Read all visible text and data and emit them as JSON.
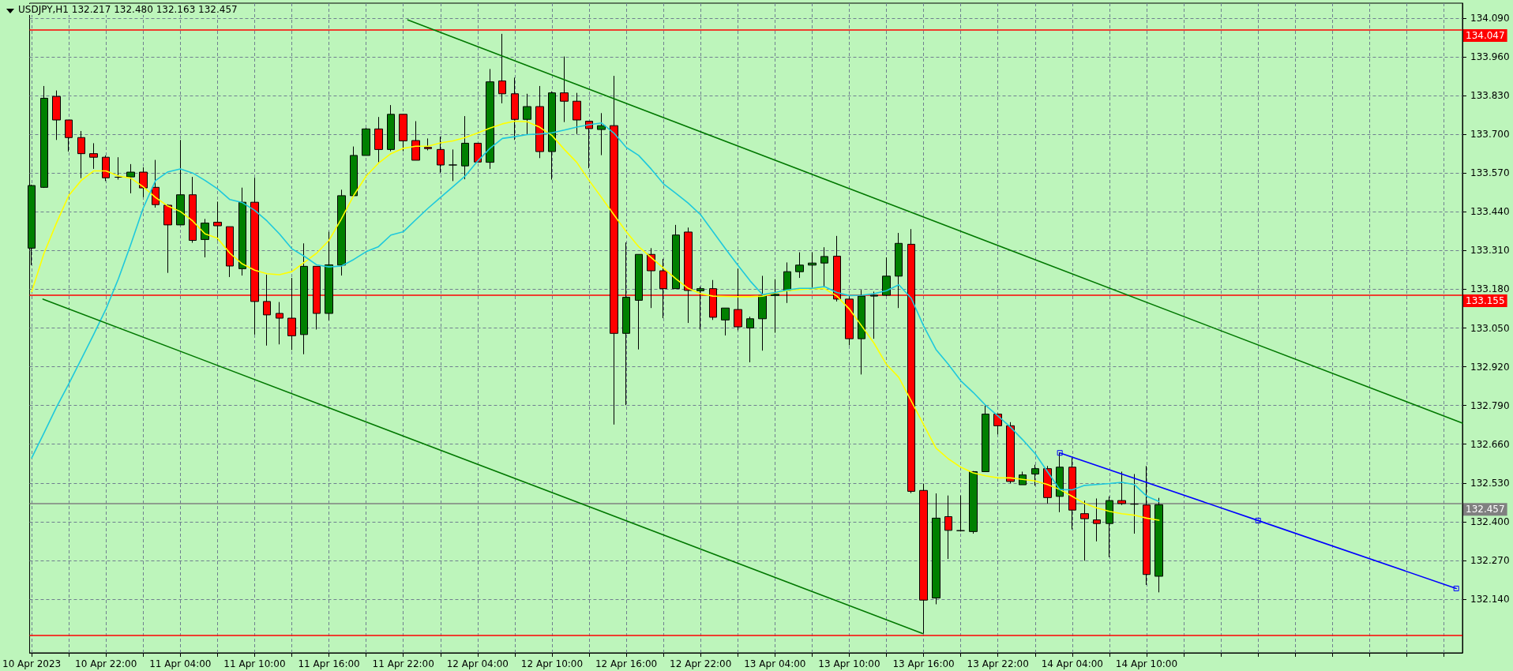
{
  "chart_data": {
    "type": "candlestick",
    "title": "USDJPY,H1 132.217 132.480 132.163 132.457",
    "x": [
      "2023-04-10T16:00",
      "2023-04-10T17:00",
      "2023-04-10T18:00",
      "2023-04-10T19:00",
      "2023-04-10T20:00",
      "2023-04-10T21:00",
      "2023-04-10T22:00",
      "2023-04-10T23:00",
      "2023-04-11T00:00",
      "2023-04-11T01:00",
      "2023-04-11T02:00",
      "2023-04-11T03:00",
      "2023-04-11T04:00",
      "2023-04-11T05:00",
      "2023-04-11T06:00",
      "2023-04-11T07:00",
      "2023-04-11T08:00",
      "2023-04-11T09:00",
      "2023-04-11T10:00",
      "2023-04-11T11:00",
      "2023-04-11T12:00",
      "2023-04-11T13:00",
      "2023-04-11T14:00",
      "2023-04-11T15:00",
      "2023-04-11T16:00",
      "2023-04-11T17:00",
      "2023-04-11T18:00",
      "2023-04-11T19:00",
      "2023-04-11T20:00",
      "2023-04-11T21:00",
      "2023-04-11T22:00",
      "2023-04-11T23:00",
      "2023-04-12T00:00",
      "2023-04-12T01:00",
      "2023-04-12T02:00",
      "2023-04-12T03:00",
      "2023-04-12T04:00",
      "2023-04-12T05:00",
      "2023-04-12T06:00",
      "2023-04-12T07:00",
      "2023-04-12T08:00",
      "2023-04-12T09:00",
      "2023-04-12T10:00",
      "2023-04-12T11:00",
      "2023-04-12T12:00",
      "2023-04-12T13:00",
      "2023-04-12T14:00",
      "2023-04-12T15:00",
      "2023-04-12T16:00",
      "2023-04-12T17:00",
      "2023-04-12T18:00",
      "2023-04-12T19:00",
      "2023-04-12T20:00",
      "2023-04-12T21:00",
      "2023-04-12T22:00",
      "2023-04-12T23:00",
      "2023-04-13T00:00",
      "2023-04-13T01:00",
      "2023-04-13T02:00",
      "2023-04-13T03:00",
      "2023-04-13T04:00",
      "2023-04-13T05:00",
      "2023-04-13T06:00",
      "2023-04-13T07:00",
      "2023-04-13T08:00",
      "2023-04-13T09:00",
      "2023-04-13T10:00",
      "2023-04-13T11:00",
      "2023-04-13T12:00",
      "2023-04-13T13:00",
      "2023-04-13T14:00",
      "2023-04-13T15:00",
      "2023-04-13T16:00",
      "2023-04-13T17:00",
      "2023-04-13T18:00",
      "2023-04-13T19:00",
      "2023-04-13T20:00",
      "2023-04-13T21:00",
      "2023-04-13T22:00",
      "2023-04-13T23:00",
      "2023-04-14T00:00",
      "2023-04-14T01:00",
      "2023-04-14T02:00",
      "2023-04-14T03:00",
      "2023-04-14T04:00",
      "2023-04-14T05:00",
      "2023-04-14T06:00",
      "2023-04-14T07:00",
      "2023-04-14T08:00",
      "2023-04-14T09:00",
      "2023-04-14T10:00",
      "2023-04-14T11:00"
    ],
    "ohlc": [
      [
        133.318,
        133.531,
        133.261,
        133.528
      ],
      [
        133.522,
        133.862,
        133.52,
        133.821
      ],
      [
        133.827,
        133.847,
        133.681,
        133.748
      ],
      [
        133.748,
        133.748,
        133.642,
        133.689
      ],
      [
        133.689,
        133.711,
        133.553,
        133.635
      ],
      [
        133.635,
        133.67,
        133.584,
        133.623
      ],
      [
        133.623,
        133.629,
        133.543,
        133.554
      ],
      [
        133.556,
        133.623,
        133.548,
        133.556
      ],
      [
        133.557,
        133.6,
        133.502,
        133.573
      ],
      [
        133.573,
        133.589,
        133.489,
        133.52
      ],
      [
        133.522,
        133.614,
        133.454,
        133.464
      ],
      [
        133.462,
        133.465,
        133.235,
        133.396
      ],
      [
        133.396,
        133.681,
        133.396,
        133.497
      ],
      [
        133.497,
        133.557,
        133.336,
        133.344
      ],
      [
        133.347,
        133.416,
        133.287,
        133.402
      ],
      [
        133.405,
        133.474,
        133.344,
        133.393
      ],
      [
        133.39,
        133.39,
        133.221,
        133.258
      ],
      [
        133.249,
        133.521,
        133.226,
        133.472
      ],
      [
        133.472,
        133.554,
        133.028,
        133.139
      ],
      [
        133.139,
        133.229,
        132.991,
        133.094
      ],
      [
        133.099,
        133.137,
        132.995,
        133.083
      ],
      [
        133.083,
        133.218,
        132.976,
        133.024
      ],
      [
        133.028,
        133.334,
        132.962,
        133.257
      ],
      [
        133.257,
        133.257,
        133.045,
        133.099
      ],
      [
        133.099,
        133.373,
        133.076,
        133.262
      ],
      [
        133.261,
        133.514,
        133.226,
        133.494
      ],
      [
        133.494,
        133.659,
        133.494,
        133.629
      ],
      [
        133.629,
        133.721,
        133.629,
        133.718
      ],
      [
        133.718,
        133.758,
        133.606,
        133.649
      ],
      [
        133.649,
        133.798,
        133.643,
        133.767
      ],
      [
        133.767,
        133.767,
        133.643,
        133.678
      ],
      [
        133.679,
        133.744,
        133.613,
        133.613
      ],
      [
        133.656,
        133.686,
        133.646,
        133.652
      ],
      [
        133.649,
        133.692,
        133.571,
        133.597
      ],
      [
        133.597,
        133.649,
        133.543,
        133.597
      ],
      [
        133.594,
        133.761,
        133.549,
        133.67
      ],
      [
        133.67,
        133.67,
        133.606,
        133.607
      ],
      [
        133.606,
        133.919,
        133.584,
        133.876
      ],
      [
        133.879,
        134.037,
        133.804,
        133.836
      ],
      [
        133.836,
        133.89,
        133.681,
        133.75
      ],
      [
        133.75,
        133.836,
        133.699,
        133.793
      ],
      [
        133.793,
        133.862,
        133.62,
        133.642
      ],
      [
        133.642,
        133.844,
        133.548,
        133.839
      ],
      [
        133.839,
        133.961,
        133.741,
        133.811
      ],
      [
        133.811,
        133.839,
        133.701,
        133.748
      ],
      [
        133.744,
        133.744,
        133.586,
        133.719
      ],
      [
        133.716,
        133.771,
        133.63,
        133.729
      ],
      [
        133.729,
        133.896,
        132.726,
        133.032
      ],
      [
        133.032,
        133.337,
        132.791,
        133.153
      ],
      [
        133.143,
        133.297,
        132.978,
        133.297
      ],
      [
        133.297,
        133.318,
        133.117,
        133.242
      ],
      [
        133.242,
        133.282,
        133.083,
        133.182
      ],
      [
        133.182,
        133.396,
        133.182,
        133.362
      ],
      [
        133.372,
        133.387,
        133.067,
        133.176
      ],
      [
        133.175,
        133.189,
        133.045,
        133.182
      ],
      [
        133.182,
        133.211,
        133.077,
        133.086
      ],
      [
        133.077,
        133.117,
        133.025,
        133.117
      ],
      [
        133.112,
        133.249,
        133.042,
        133.054
      ],
      [
        133.05,
        133.088,
        132.935,
        133.081
      ],
      [
        133.081,
        133.225,
        132.974,
        133.159
      ],
      [
        133.159,
        133.214,
        133.034,
        133.163
      ],
      [
        133.176,
        133.27,
        133.134,
        133.239
      ],
      [
        133.239,
        133.304,
        133.218,
        133.261
      ],
      [
        133.261,
        133.304,
        133.186,
        133.268
      ],
      [
        133.268,
        133.321,
        133.186,
        133.29
      ],
      [
        133.291,
        133.359,
        133.139,
        133.147
      ],
      [
        133.147,
        133.157,
        132.992,
        133.014
      ],
      [
        133.014,
        133.178,
        132.894,
        133.157
      ],
      [
        133.157,
        133.172,
        133.014,
        133.16
      ],
      [
        133.16,
        133.287,
        133.157,
        133.224
      ],
      [
        133.224,
        133.369,
        133.117,
        133.334
      ],
      [
        133.331,
        133.382,
        132.496,
        132.502
      ],
      [
        132.505,
        132.528,
        132.025,
        132.137
      ],
      [
        132.144,
        132.495,
        132.123,
        132.412
      ],
      [
        132.417,
        132.488,
        132.275,
        132.371
      ],
      [
        132.37,
        132.488,
        132.367,
        132.37
      ],
      [
        132.367,
        132.57,
        132.36,
        132.568
      ],
      [
        132.568,
        132.791,
        132.568,
        132.761
      ],
      [
        132.761,
        132.761,
        132.693,
        132.722
      ],
      [
        132.722,
        132.734,
        132.529,
        132.535
      ],
      [
        132.524,
        132.568,
        132.524,
        132.557
      ],
      [
        132.56,
        132.591,
        132.521,
        132.578
      ],
      [
        132.578,
        132.587,
        132.461,
        132.481
      ],
      [
        132.485,
        132.632,
        132.432,
        132.583
      ],
      [
        132.583,
        132.614,
        132.374,
        132.439
      ],
      [
        132.427,
        132.471,
        132.269,
        132.41
      ],
      [
        132.406,
        132.478,
        132.334,
        132.394
      ],
      [
        132.394,
        132.485,
        132.281,
        132.471
      ],
      [
        132.471,
        132.568,
        132.456,
        132.461
      ],
      [
        132.459,
        132.56,
        132.36,
        132.459
      ],
      [
        132.456,
        132.587,
        132.188,
        132.223
      ],
      [
        132.217,
        132.48,
        132.163,
        132.457
      ]
    ],
    "colors": [
      "#008000",
      "#008000",
      "#ff0000",
      "#ff0000",
      "#ff0000",
      "#ff0000",
      "#ff0000",
      "#000000",
      "#008000",
      "#ff0000",
      "#ff0000",
      "#ff0000",
      "#008000",
      "#ff0000",
      "#008000",
      "#ff0000",
      "#ff0000",
      "#008000",
      "#ff0000",
      "#ff0000",
      "#ff0000",
      "#ff0000",
      "#008000",
      "#ff0000",
      "#008000",
      "#008000",
      "#008000",
      "#008000",
      "#ff0000",
      "#008000",
      "#ff0000",
      "#ff0000",
      "#ff0000",
      "#ff0000",
      "#000000",
      "#008000",
      "#ff0000",
      "#008000",
      "#ff0000",
      "#ff0000",
      "#008000",
      "#ff0000",
      "#008000",
      "#ff0000",
      "#ff0000",
      "#ff0000",
      "#008000",
      "#ff0000",
      "#008000",
      "#008000",
      "#ff0000",
      "#ff0000",
      "#008000",
      "#ff0000",
      "#008000",
      "#ff0000",
      "#008000",
      "#ff0000",
      "#008000",
      "#008000",
      "#008000",
      "#008000",
      "#008000",
      "#008000",
      "#008000",
      "#ff0000",
      "#ff0000",
      "#008000",
      "#008000",
      "#008000",
      "#008000",
      "#ff0000",
      "#ff0000",
      "#008000",
      "#ff0000",
      "#000000",
      "#008000",
      "#008000",
      "#ff0000",
      "#ff0000",
      "#008000",
      "#008000",
      "#ff0000",
      "#008000",
      "#ff0000",
      "#ff0000",
      "#ff0000",
      "#008000",
      "#ff0000",
      "#000000",
      "#ff0000",
      "#008000"
    ],
    "series": [
      {
        "type": "line",
        "color": "#ffff00",
        "values": [
          133.172,
          133.301,
          133.402,
          133.495,
          133.545,
          133.577,
          133.577,
          133.56,
          133.553,
          133.524,
          133.488,
          133.459,
          133.441,
          133.409,
          133.366,
          133.351,
          133.301,
          133.265,
          133.244,
          133.232,
          133.229,
          133.239,
          133.27,
          133.301,
          133.344,
          133.416,
          133.495,
          133.56,
          133.603,
          133.635,
          133.653,
          133.66,
          133.66,
          133.671,
          133.678,
          133.689,
          133.704,
          133.721,
          133.735,
          133.744,
          133.742,
          133.724,
          133.696,
          133.649,
          133.606,
          133.545,
          133.488,
          133.43,
          133.373,
          133.323,
          133.287,
          133.251,
          133.215,
          133.183,
          133.165,
          133.157,
          133.156,
          133.155,
          133.155,
          133.157,
          133.168,
          133.175,
          133.179,
          133.182,
          133.182,
          133.157,
          133.114,
          133.057,
          132.999,
          132.928,
          132.884,
          132.805,
          132.726,
          132.647,
          132.611,
          132.583,
          132.564,
          132.554,
          132.547,
          132.547,
          132.542,
          132.537,
          132.525,
          132.508,
          132.485,
          132.461,
          132.446,
          132.435,
          132.427,
          132.422,
          132.412,
          132.405
        ]
      },
      {
        "type": "line",
        "color": "#1ec8dc",
        "values": [
          132.614,
          132.698,
          132.784,
          132.863,
          132.945,
          133.028,
          133.114,
          133.215,
          133.33,
          133.452,
          133.545,
          133.574,
          133.584,
          133.57,
          133.545,
          133.517,
          133.481,
          133.471,
          133.445,
          133.409,
          133.366,
          133.316,
          133.291,
          133.262,
          133.255,
          133.258,
          133.28,
          133.306,
          133.323,
          133.362,
          133.373,
          133.413,
          133.452,
          133.488,
          133.524,
          133.56,
          133.61,
          133.653,
          133.686,
          133.692,
          133.699,
          133.701,
          133.705,
          133.714,
          133.724,
          133.732,
          133.738,
          133.704,
          133.656,
          133.629,
          133.584,
          133.534,
          133.502,
          133.469,
          133.43,
          133.373,
          133.316,
          133.261,
          133.208,
          133.162,
          133.169,
          133.178,
          133.183,
          133.183,
          133.189,
          133.169,
          133.159,
          133.16,
          133.165,
          133.175,
          133.195,
          133.15,
          133.057,
          132.978,
          132.928,
          132.873,
          132.834,
          132.791,
          132.755,
          132.718,
          132.675,
          132.629,
          132.568,
          132.508,
          132.507,
          132.522,
          132.525,
          132.528,
          132.532,
          132.525,
          132.486,
          132.468
        ]
      },
      {
        "type": "line",
        "color": "#007800",
        "x": [
          "2023-04-11T22:22",
          "2023-04-15T11:30"
        ],
        "values": [
          134.084,
          132.731
        ]
      },
      {
        "type": "line",
        "color": "#007800",
        "x": [
          "2023-04-10T16:55",
          "2023-04-13T15:55"
        ],
        "values": [
          133.147,
          132.025
        ]
      },
      {
        "type": "line",
        "color": "#0000ff",
        "marker": "square",
        "x": [
          "2023-04-14T03:00",
          "2023-04-14T19:00",
          "2023-04-15T11:00"
        ],
        "values": [
          132.631,
          132.404,
          132.176
        ]
      }
    ],
    "ref_lines": [
      {
        "axis": "y",
        "value": 134.047,
        "label": "134.047",
        "color": "#ff0000"
      },
      {
        "axis": "y",
        "value": 133.155,
        "label": "133.155",
        "color": "#ff0000"
      },
      {
        "axis": "y",
        "value": 132.018,
        "label": null,
        "color": "#ff0000"
      },
      {
        "axis": "y",
        "value": 132.457,
        "label": "132.457",
        "color": "#808080"
      }
    ],
    "xlim": [
      "2023-04-10T15:50",
      "2023-04-15T11:30"
    ],
    "xticks": [
      {
        "value": "2023-04-10T16:00",
        "label": "10 Apr 2023"
      },
      {
        "value": "2023-04-10T19:00",
        "label": null
      },
      {
        "value": "2023-04-10T22:00",
        "label": "10 Apr 22:00"
      },
      {
        "value": "2023-04-11T01:00",
        "label": null
      },
      {
        "value": "2023-04-11T04:00",
        "label": "11 Apr 04:00"
      },
      {
        "value": "2023-04-11T07:00",
        "label": null
      },
      {
        "value": "2023-04-11T10:00",
        "label": "11 Apr 10:00"
      },
      {
        "value": "2023-04-11T13:00",
        "label": null
      },
      {
        "value": "2023-04-11T16:00",
        "label": "11 Apr 16:00"
      },
      {
        "value": "2023-04-11T19:00",
        "label": null
      },
      {
        "value": "2023-04-11T22:00",
        "label": "11 Apr 22:00"
      },
      {
        "value": "2023-04-12T01:00",
        "label": null
      },
      {
        "value": "2023-04-12T04:00",
        "label": "12 Apr 04:00"
      },
      {
        "value": "2023-04-12T07:00",
        "label": null
      },
      {
        "value": "2023-04-12T10:00",
        "label": "12 Apr 10:00"
      },
      {
        "value": "2023-04-12T13:00",
        "label": null
      },
      {
        "value": "2023-04-12T16:00",
        "label": "12 Apr 16:00"
      },
      {
        "value": "2023-04-12T19:00",
        "label": null
      },
      {
        "value": "2023-04-12T22:00",
        "label": "12 Apr 22:00"
      },
      {
        "value": "2023-04-13T01:00",
        "label": null
      },
      {
        "value": "2023-04-13T04:00",
        "label": "13 Apr 04:00"
      },
      {
        "value": "2023-04-13T07:00",
        "label": null
      },
      {
        "value": "2023-04-13T10:00",
        "label": "13 Apr 10:00"
      },
      {
        "value": "2023-04-13T13:00",
        "label": null
      },
      {
        "value": "2023-04-13T16:00",
        "label": "13 Apr 16:00"
      },
      {
        "value": "2023-04-13T19:00",
        "label": null
      },
      {
        "value": "2023-04-13T22:00",
        "label": "13 Apr 22:00"
      },
      {
        "value": "2023-04-14T01:00",
        "label": null
      },
      {
        "value": "2023-04-14T04:00",
        "label": "14 Apr 04:00"
      },
      {
        "value": "2023-04-14T07:00",
        "label": null
      },
      {
        "value": "2023-04-14T10:00",
        "label": "14 Apr 10:00"
      },
      {
        "value": "2023-04-14T13:00",
        "label": null
      },
      {
        "value": "2023-04-14T16:00",
        "label": null
      },
      {
        "value": "2023-04-14T19:00",
        "label": null
      },
      {
        "value": "2023-04-14T22:00",
        "label": null
      },
      {
        "value": "2023-04-15T01:00",
        "label": null
      },
      {
        "value": "2023-04-15T04:00",
        "label": null
      },
      {
        "value": "2023-04-15T07:00",
        "label": null
      },
      {
        "value": "2023-04-15T10:00",
        "label": null
      }
    ],
    "ylim": [
      131.96,
      134.14
    ],
    "yticks": [
      {
        "value": 132.14,
        "label": "132.140"
      },
      {
        "value": 132.27,
        "label": "132.270"
      },
      {
        "value": 132.4,
        "label": "132.400"
      },
      {
        "value": 132.53,
        "label": "132.530"
      },
      {
        "value": 132.66,
        "label": "132.660"
      },
      {
        "value": 132.79,
        "label": "132.790"
      },
      {
        "value": 132.92,
        "label": "132.920"
      },
      {
        "value": 133.05,
        "label": "133.050"
      },
      {
        "value": 133.18,
        "label": "133.180"
      },
      {
        "value": 133.31,
        "label": "133.310"
      },
      {
        "value": 133.44,
        "label": "133.440"
      },
      {
        "value": 133.57,
        "label": "133.570"
      },
      {
        "value": 133.7,
        "label": "133.700"
      },
      {
        "value": 133.83,
        "label": "133.830"
      },
      {
        "value": 133.96,
        "label": "133.960"
      },
      {
        "value": 134.09,
        "label": "134.090"
      }
    ],
    "grid": true,
    "marker": "none"
  }
}
